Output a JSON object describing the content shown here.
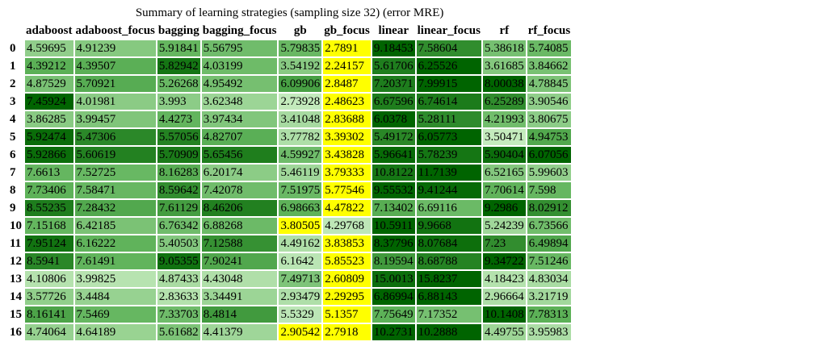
{
  "chart_data": {
    "type": "heatmap",
    "title": "Summary of learning strategies (sampling size 32) (error MRE)",
    "columns": [
      "adaboost",
      "adaboost_focus",
      "bagging",
      "bagging_focus",
      "gb",
      "gb_focus",
      "linear",
      "linear_focus",
      "rf",
      "rf_focus"
    ],
    "rows": [
      "0",
      "1",
      "2",
      "3",
      "4",
      "5",
      "6",
      "7",
      "8",
      "9",
      "10",
      "11",
      "12",
      "13",
      "14",
      "15",
      "16"
    ],
    "values": [
      [
        "4.59695",
        "4.91239",
        "5.91841",
        "5.56795",
        "5.79835",
        "2.7891",
        "9.18453",
        "7.58604",
        "5.38618",
        "5.74085"
      ],
      [
        "4.39212",
        "4.39507",
        "5.82942",
        "4.03199",
        "3.54192",
        "2.24157",
        "5.61706",
        "6.25526",
        "3.61685",
        "3.84662"
      ],
      [
        "4.87529",
        "5.70921",
        "5.26268",
        "4.95492",
        "6.09906",
        "2.8487",
        "7.20371",
        "7.99915",
        "8.00038",
        "4.78845"
      ],
      [
        "7.45924",
        "4.01981",
        "3.993",
        "3.62348",
        "2.73928",
        "2.48623",
        "6.67596",
        "6.74614",
        "6.25289",
        "3.90546"
      ],
      [
        "3.86285",
        "3.99457",
        "4.4273",
        "3.97434",
        "3.41048",
        "2.83688",
        "6.0378",
        "5.28111",
        "4.21993",
        "3.80675"
      ],
      [
        "5.92474",
        "5.47306",
        "5.57056",
        "4.82707",
        "3.77782",
        "3.39302",
        "5.49172",
        "6.05773",
        "3.50471",
        "4.94753"
      ],
      [
        "5.92866",
        "5.60619",
        "5.70909",
        "5.65456",
        "4.59927",
        "3.43828",
        "5.96641",
        "5.78239",
        "5.90404",
        "6.07056"
      ],
      [
        "7.6613",
        "7.52725",
        "8.16283",
        "6.20174",
        "5.46119",
        "3.79333",
        "10.8122",
        "11.7139",
        "6.52165",
        "5.99603"
      ],
      [
        "7.73406",
        "7.58471",
        "8.59642",
        "7.42078",
        "7.51975",
        "5.77546",
        "9.55532",
        "9.41244",
        "7.70614",
        "7.598"
      ],
      [
        "8.55235",
        "7.28432",
        "7.61129",
        "8.46206",
        "6.98663",
        "4.47822",
        "7.13402",
        "6.69116",
        "9.2986",
        "8.02912"
      ],
      [
        "7.15168",
        "6.42185",
        "6.76342",
        "6.88268",
        "3.80505",
        "4.29768",
        "10.5911",
        "9.9668",
        "5.24239",
        "6.73566"
      ],
      [
        "7.95124",
        "6.16222",
        "5.40503",
        "7.12588",
        "4.49162",
        "3.83853",
        "8.37796",
        "8.07684",
        "7.23",
        "6.49894"
      ],
      [
        "8.5941",
        "7.61491",
        "9.05355",
        "7.90241",
        "6.1642",
        "5.85523",
        "8.19594",
        "8.68788",
        "9.34722",
        "7.51246"
      ],
      [
        "4.10806",
        "3.99825",
        "4.87433",
        "4.43048",
        "7.49713",
        "2.60809",
        "15.0013",
        "15.8237",
        "4.18423",
        "4.83034"
      ],
      [
        "3.57726",
        "3.4484",
        "2.83633",
        "3.34491",
        "2.93479",
        "2.29295",
        "6.86994",
        "6.88143",
        "2.96664",
        "3.21719"
      ],
      [
        "8.16141",
        "7.5469",
        "7.33703",
        "8.4814",
        "5.5329",
        "5.1357",
        "7.75649",
        "7.17352",
        "10.1408",
        "7.78313"
      ],
      [
        "4.74064",
        "4.64189",
        "5.61682",
        "4.41379",
        "2.90542",
        "2.7918",
        "10.2731",
        "10.2888",
        "4.49755",
        "3.95983"
      ]
    ],
    "colors": {
      "low": "#ffff00",
      "mid_light": "#c7ecc0",
      "mid": "#5fb35a",
      "high": "#006400"
    }
  }
}
